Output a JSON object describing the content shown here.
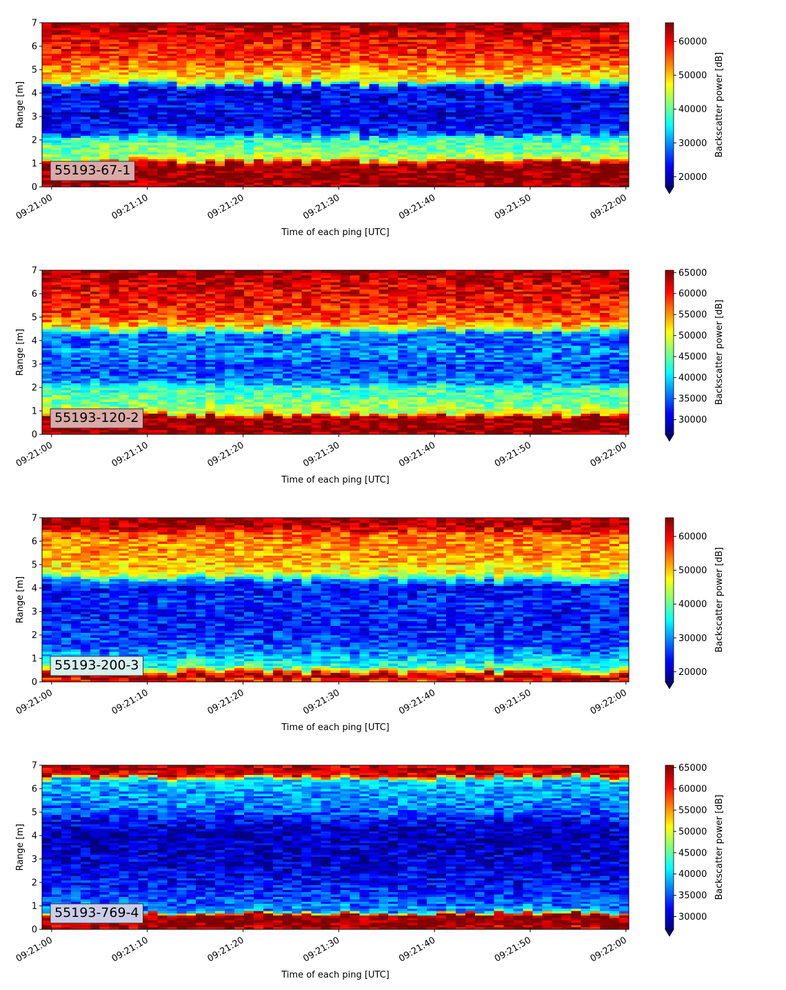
{
  "chart_data": [
    {
      "type": "heatmap",
      "panel_label": "55193-67-1",
      "xlabel": "Time of each ping [UTC]",
      "ylabel": "Range [m]",
      "x_ticks": [
        "09:21:00",
        "09:21:10",
        "09:21:20",
        "09:21:30",
        "09:21:40",
        "09:21:50",
        "09:22:00"
      ],
      "y_ticks": [
        "0",
        "1",
        "2",
        "3",
        "4",
        "5",
        "6",
        "7"
      ],
      "xlim_seconds": [
        -1,
        60.3
      ],
      "ylim": [
        0,
        7
      ],
      "colorbar": {
        "label": "Backscatter power [dB]",
        "ticks": [
          "20000",
          "30000",
          "40000",
          "50000",
          "60000"
        ],
        "tick_values": [
          20000,
          30000,
          40000,
          50000,
          60000
        ],
        "range": [
          17000,
          65535
        ],
        "colormap": "jet",
        "extend": "min"
      },
      "profile": {
        "range_m": [
          0,
          0.2,
          0.8,
          1.0,
          1.2,
          1.6,
          2.1,
          2.2,
          2.8,
          3.5,
          4.0,
          4.3,
          4.5,
          5.0,
          5.5,
          6.0,
          6.5,
          6.8,
          7.0
        ],
        "backscatter": [
          64000,
          65000,
          65000,
          63000,
          44000,
          41000,
          37000,
          27000,
          22000,
          23000,
          22000,
          25000,
          46000,
          52000,
          57000,
          59000,
          61000,
          64000,
          65000
        ]
      },
      "tag_color": "#d9aaa8"
    },
    {
      "type": "heatmap",
      "panel_label": "55193-120-2",
      "xlabel": "Time of each ping [UTC]",
      "ylabel": "Range [m]",
      "x_ticks": [
        "09:21:00",
        "09:21:10",
        "09:21:20",
        "09:21:30",
        "09:21:40",
        "09:21:50",
        "09:22:00"
      ],
      "y_ticks": [
        "0",
        "1",
        "2",
        "3",
        "4",
        "5",
        "6",
        "7"
      ],
      "xlim_seconds": [
        -1,
        60.3
      ],
      "ylim": [
        0,
        7
      ],
      "colorbar": {
        "label": "Backscatter power [dB]",
        "ticks": [
          "30000",
          "35000",
          "40000",
          "45000",
          "50000",
          "55000",
          "60000",
          "65000"
        ],
        "tick_values": [
          30000,
          35000,
          40000,
          45000,
          50000,
          55000,
          60000,
          65000
        ],
        "range": [
          26500,
          65535
        ],
        "colormap": "jet",
        "extend": "min"
      },
      "profile": {
        "range_m": [
          0,
          0.2,
          0.75,
          0.9,
          1.3,
          1.9,
          2.3,
          3.0,
          3.5,
          4.0,
          4.3,
          4.6,
          5.0,
          5.5,
          6.0,
          6.5,
          6.8,
          7.0
        ],
        "backscatter": [
          64000,
          65000,
          65000,
          50000,
          46000,
          44000,
          36000,
          34000,
          37000,
          35000,
          36000,
          52000,
          58000,
          60000,
          61000,
          62000,
          64000,
          65000
        ]
      },
      "tag_color": "#d9aaa8"
    },
    {
      "type": "heatmap",
      "panel_label": "55193-200-3",
      "xlabel": "Time of each ping [UTC]",
      "ylabel": "Range [m]",
      "x_ticks": [
        "09:21:00",
        "09:21:10",
        "09:21:20",
        "09:21:30",
        "09:21:40",
        "09:21:50",
        "09:22:00"
      ],
      "y_ticks": [
        "0",
        "1",
        "2",
        "3",
        "4",
        "5",
        "6",
        "7"
      ],
      "xlim_seconds": [
        -1,
        60.3
      ],
      "ylim": [
        0,
        7
      ],
      "colorbar": {
        "label": "Backscatter power [dB]",
        "ticks": [
          "20000",
          "30000",
          "40000",
          "50000",
          "60000"
        ],
        "tick_values": [
          20000,
          30000,
          40000,
          50000,
          60000
        ],
        "range": [
          17000,
          65535
        ],
        "colormap": "jet",
        "extend": "min"
      },
      "profile": {
        "range_m": [
          0,
          0.2,
          0.35,
          0.6,
          1.0,
          1.5,
          2.0,
          3.0,
          3.5,
          4.0,
          4.3,
          4.6,
          5.0,
          5.5,
          6.0,
          6.3,
          6.6,
          7.0
        ],
        "backscatter": [
          56000,
          65000,
          60000,
          39000,
          33000,
          27000,
          25000,
          24000,
          25000,
          23000,
          29000,
          46000,
          50000,
          52000,
          53000,
          55000,
          63000,
          64000
        ]
      },
      "tag_color": "#d6f0ee"
    },
    {
      "type": "heatmap",
      "panel_label": "55193-769-4",
      "xlabel": "Time of each ping [UTC]",
      "ylabel": "Range [m]",
      "x_ticks": [
        "09:21:00",
        "09:21:10",
        "09:21:20",
        "09:21:30",
        "09:21:40",
        "09:21:50",
        "09:22:00"
      ],
      "y_ticks": [
        "0",
        "1",
        "2",
        "3",
        "4",
        "5",
        "6",
        "7"
      ],
      "xlim_seconds": [
        -1,
        60.3
      ],
      "ylim": [
        0,
        7
      ],
      "colorbar": {
        "label": "Backscatter power [dB]",
        "ticks": [
          "30000",
          "35000",
          "40000",
          "45000",
          "50000",
          "55000",
          "60000",
          "65000"
        ],
        "tick_values": [
          30000,
          35000,
          40000,
          45000,
          50000,
          55000,
          60000,
          65000
        ],
        "range": [
          27000,
          65535
        ],
        "colormap": "jet",
        "extend": "min"
      },
      "profile": {
        "range_m": [
          0,
          0.2,
          0.65,
          0.8,
          1.2,
          2.0,
          3.0,
          4.0,
          4.6,
          5.0,
          5.5,
          6.0,
          6.4,
          6.6,
          7.0
        ],
        "backscatter": [
          62000,
          65000,
          65000,
          38000,
          35000,
          32000,
          30000,
          29000,
          31000,
          35000,
          37000,
          38000,
          40000,
          62000,
          63000
        ]
      },
      "tag_color": "#c9cde8"
    }
  ]
}
